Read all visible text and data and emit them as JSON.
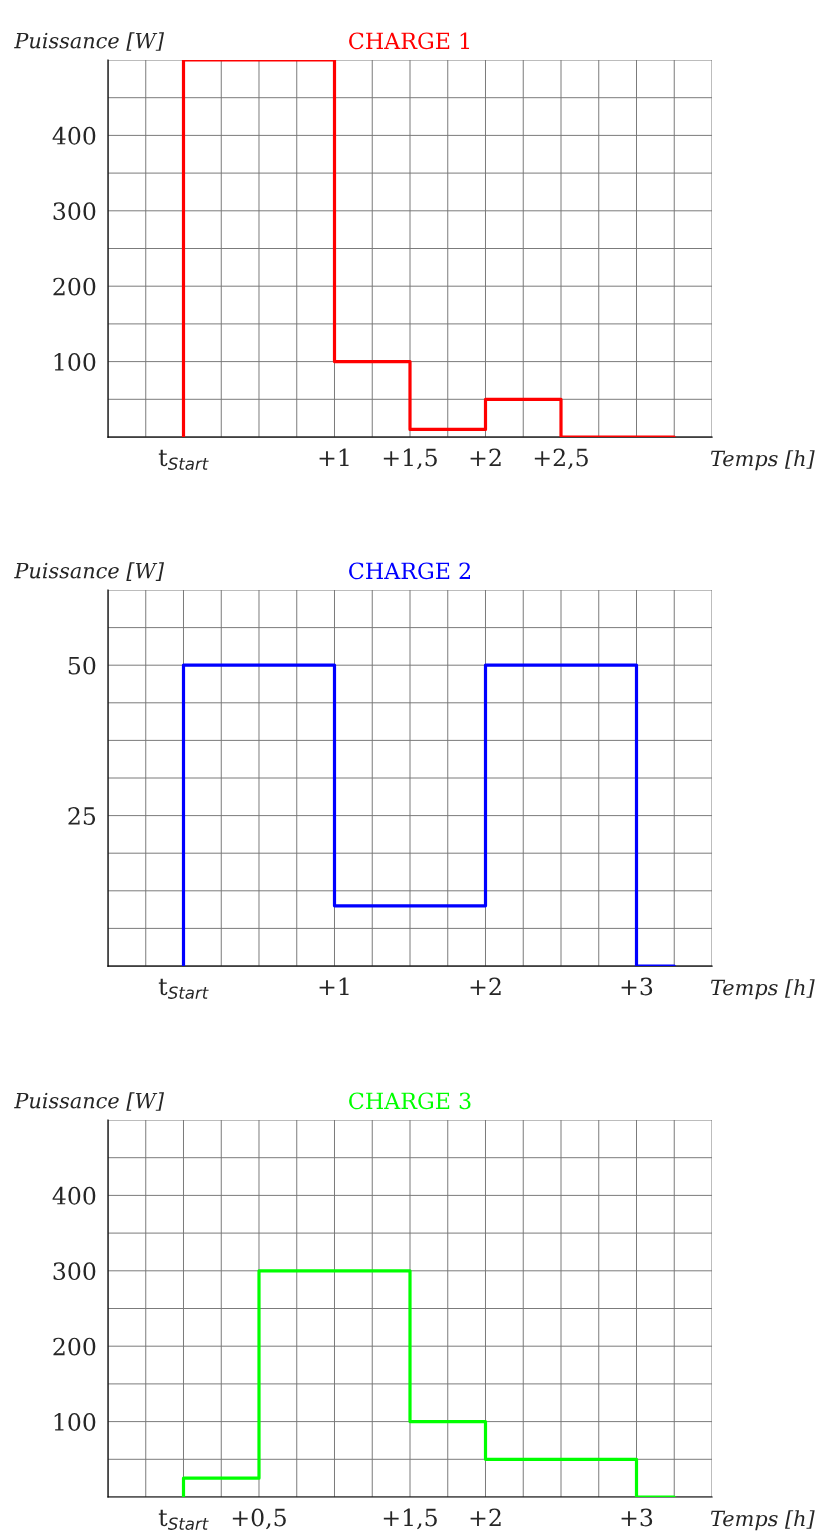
{
  "chart_data": [
    {
      "type": "step",
      "title": "CHARGE 1",
      "xlabel": "Temps [h]",
      "ylabel": "Puissance [W]",
      "grid": true,
      "series": [
        {
          "color": "#ff0000",
          "x": [
            0,
            0,
            1,
            1.5,
            2,
            2.5,
            3.25
          ],
          "values": [
            0,
            500,
            100,
            10,
            50,
            0,
            0
          ]
        }
      ],
      "xlim": [
        -0.5,
        3.5
      ],
      "xticks": [
        {
          "value": -0.5,
          "label": null
        },
        {
          "value": -0.25,
          "label": null
        },
        {
          "value": 0,
          "label": "t$_{Start}$"
        },
        {
          "value": 0.25,
          "label": null
        },
        {
          "value": 0.5,
          "label": null
        },
        {
          "value": 0.75,
          "label": null
        },
        {
          "value": 1,
          "label": "+1"
        },
        {
          "value": 1.25,
          "label": null
        },
        {
          "value": 1.5,
          "label": "+1,5"
        },
        {
          "value": 1.75,
          "label": null
        },
        {
          "value": 2,
          "label": "+2"
        },
        {
          "value": 2.25,
          "label": null
        },
        {
          "value": 2.5,
          "label": "+2,5"
        },
        {
          "value": 2.75,
          "label": null
        },
        {
          "value": 3,
          "label": null
        },
        {
          "value": 3.25,
          "label": null
        },
        {
          "value": 3.5,
          "label": null
        }
      ],
      "ylim": [
        0,
        500
      ],
      "yticks": [
        {
          "value": 0,
          "label": null
        },
        {
          "value": 50,
          "label": null
        },
        100,
        {
          "value": 150,
          "label": null
        },
        200,
        {
          "value": 250,
          "label": null
        },
        300,
        {
          "value": 350,
          "label": null
        },
        400,
        {
          "value": 450,
          "label": null
        },
        {
          "value": 500,
          "label": null
        }
      ]
    },
    {
      "type": "step",
      "title": "CHARGE 2",
      "xlabel": "Temps [h]",
      "ylabel": "Puissance [W]",
      "grid": true,
      "series": [
        {
          "color": "#0000ff",
          "x": [
            0,
            0,
            1,
            2,
            3,
            3.25
          ],
          "values": [
            0,
            50,
            10,
            50,
            0,
            0
          ]
        }
      ],
      "xlim": [
        -0.5,
        3.5
      ],
      "xticks": [
        {
          "value": -0.5,
          "label": null
        },
        {
          "value": -0.25,
          "label": null
        },
        {
          "value": 0,
          "label": "t$_{Start}$"
        },
        {
          "value": 0.25,
          "label": null
        },
        {
          "value": 0.5,
          "label": null
        },
        {
          "value": 0.75,
          "label": null
        },
        {
          "value": 1,
          "label": "+1"
        },
        {
          "value": 1.25,
          "label": null
        },
        {
          "value": 1.5,
          "label": null
        },
        {
          "value": 1.75,
          "label": null
        },
        {
          "value": 2,
          "label": "+2"
        },
        {
          "value": 2.25,
          "label": null
        },
        {
          "value": 2.5,
          "label": null
        },
        {
          "value": 2.75,
          "label": null
        },
        {
          "value": 3,
          "label": "+3"
        },
        {
          "value": 3.25,
          "label": null
        },
        {
          "value": 3.5,
          "label": null
        }
      ],
      "ylim": [
        0,
        62.5
      ],
      "yticks": [
        {
          "value": 0,
          "label": null
        },
        {
          "value": 6.25,
          "label": null
        },
        {
          "value": 12.5,
          "label": null
        },
        {
          "value": 18.75,
          "label": null
        },
        25,
        {
          "value": 31.25,
          "label": null
        },
        {
          "value": 37.5,
          "label": null
        },
        {
          "value": 43.75,
          "label": null
        },
        50,
        {
          "value": 56.25,
          "label": null
        },
        {
          "value": 62.5,
          "label": null
        }
      ]
    },
    {
      "type": "step",
      "title": "CHARGE 3",
      "xlabel": "Temps [h]",
      "ylabel": "Puissance [W]",
      "grid": true,
      "series": [
        {
          "color": "#00ff00",
          "x": [
            0,
            0,
            0.5,
            1.5,
            2,
            3,
            3.25
          ],
          "values": [
            0,
            25,
            300,
            100,
            50,
            0,
            0
          ]
        }
      ],
      "xlim": [
        -0.5,
        3.5
      ],
      "xticks": [
        {
          "value": -0.5,
          "label": null
        },
        {
          "value": -0.25,
          "label": null
        },
        {
          "value": 0,
          "label": "t$_{Start}$"
        },
        {
          "value": 0.25,
          "label": null
        },
        {
          "value": 0.5,
          "label": "+0,5"
        },
        {
          "value": 0.75,
          "label": null
        },
        {
          "value": 1,
          "label": null
        },
        {
          "value": 1.25,
          "label": null
        },
        {
          "value": 1.5,
          "label": "+1,5"
        },
        {
          "value": 1.75,
          "label": null
        },
        {
          "value": 2,
          "label": "+2"
        },
        {
          "value": 2.25,
          "label": null
        },
        {
          "value": 2.5,
          "label": null
        },
        {
          "value": 2.75,
          "label": null
        },
        {
          "value": 3,
          "label": "+3"
        },
        {
          "value": 3.25,
          "label": null
        },
        {
          "value": 3.5,
          "label": null
        }
      ],
      "ylim": [
        0,
        500
      ],
      "yticks": [
        {
          "value": 0,
          "label": null
        },
        {
          "value": 50,
          "label": null
        },
        100,
        {
          "value": 150,
          "label": null
        },
        200,
        {
          "value": 250,
          "label": null
        },
        300,
        {
          "value": 350,
          "label": null
        },
        400,
        {
          "value": 450,
          "label": null
        },
        {
          "value": 500,
          "label": null
        }
      ]
    }
  ]
}
